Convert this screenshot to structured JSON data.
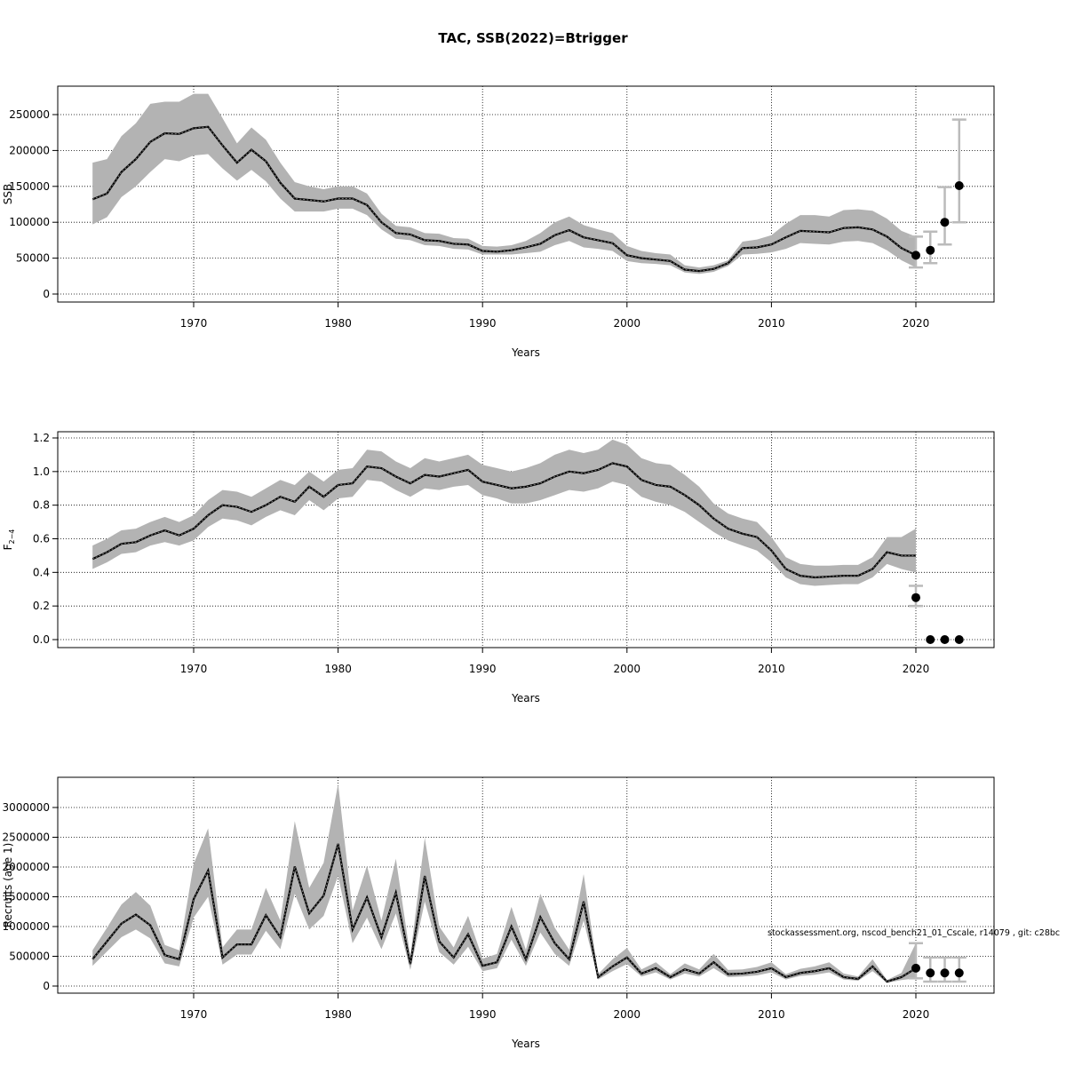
{
  "chart_data": {
    "title": "TAC, SSB(2022)=Btrigger",
    "annotation": "stockassessment.org, nscod_bench21_01_Cscale, r14079 , git: c28bc",
    "x_ticks": [
      1970,
      1980,
      1990,
      2000,
      2010,
      2020
    ],
    "years": [
      1963,
      1964,
      1965,
      1966,
      1967,
      1968,
      1969,
      1970,
      1971,
      1972,
      1973,
      1974,
      1975,
      1976,
      1977,
      1978,
      1979,
      1980,
      1981,
      1982,
      1983,
      1984,
      1985,
      1986,
      1987,
      1988,
      1989,
      1990,
      1991,
      1992,
      1993,
      1994,
      1995,
      1996,
      1997,
      1998,
      1999,
      2000,
      2001,
      2002,
      2003,
      2004,
      2005,
      2006,
      2007,
      2008,
      2009,
      2010,
      2011,
      2012,
      2013,
      2014,
      2015,
      2016,
      2017,
      2018,
      2019,
      2020
    ],
    "panels": [
      {
        "type": "line",
        "name": "ssb",
        "xlabel": "Years",
        "ylabel": "SSB",
        "ylim": [
          0,
          250000
        ],
        "y_ticks": [
          "0",
          "50000",
          "100000",
          "150000",
          "200000",
          "250000"
        ],
        "grid": true,
        "estimate": [
          132000,
          140000,
          170000,
          188000,
          212000,
          224000,
          223000,
          231000,
          233000,
          207000,
          183000,
          201000,
          185000,
          155000,
          133000,
          131000,
          129000,
          133000,
          133000,
          124000,
          100000,
          85000,
          83000,
          75000,
          74000,
          70000,
          69000,
          60000,
          59000,
          61000,
          65000,
          70000,
          82000,
          89000,
          79000,
          75000,
          71000,
          54000,
          50000,
          48000,
          46000,
          34000,
          32000,
          35000,
          43000,
          64000,
          65000,
          69000,
          79000,
          88000,
          87000,
          86000,
          92000,
          93000,
          90000,
          80000,
          64000,
          54000
        ],
        "lower": [
          97000,
          107000,
          135000,
          150000,
          170000,
          188000,
          185000,
          193000,
          195000,
          175000,
          158000,
          173000,
          157000,
          133000,
          115000,
          115000,
          115000,
          119000,
          119000,
          110000,
          90000,
          77000,
          75000,
          68000,
          67000,
          63000,
          62000,
          55000,
          55000,
          55000,
          57000,
          59000,
          68000,
          74000,
          65000,
          63000,
          60000,
          46000,
          43000,
          42000,
          40000,
          30000,
          28000,
          31000,
          39000,
          55000,
          56000,
          58000,
          63000,
          71000,
          70000,
          69000,
          73000,
          74000,
          71000,
          61000,
          47000,
          37000
        ],
        "upper": [
          183000,
          188000,
          220000,
          238000,
          265000,
          268000,
          268000,
          279000,
          279000,
          245000,
          210000,
          232000,
          215000,
          183000,
          156000,
          150000,
          146000,
          150000,
          150000,
          140000,
          112000,
          95000,
          93000,
          85000,
          84000,
          78000,
          77000,
          67000,
          66000,
          68000,
          74000,
          85000,
          100000,
          108000,
          96000,
          90000,
          85000,
          67000,
          60000,
          57000,
          55000,
          40000,
          37000,
          40000,
          47000,
          73000,
          76000,
          82000,
          98000,
          110000,
          110000,
          108000,
          117000,
          118000,
          116000,
          105000,
          88000,
          80000
        ],
        "forecast": [
          {
            "year": 2020,
            "value": 54000,
            "low": 37000,
            "high": 80000
          },
          {
            "year": 2021,
            "value": 61000,
            "low": 43000,
            "high": 87000
          },
          {
            "year": 2022,
            "value": 100000,
            "low": 69000,
            "high": 149000
          },
          {
            "year": 2023,
            "value": 151000,
            "low": 100000,
            "high": 243000
          }
        ]
      },
      {
        "type": "line",
        "name": "fbar",
        "xlabel": "Years",
        "ylabel": "F",
        "ylabel_sub": "2−4",
        "ylim": [
          0,
          1.2
        ],
        "y_ticks": [
          "0.0",
          "0.2",
          "0.4",
          "0.6",
          "0.8",
          "1.0",
          "1.2"
        ],
        "grid": true,
        "estimate": [
          0.48,
          0.52,
          0.57,
          0.58,
          0.62,
          0.65,
          0.62,
          0.66,
          0.74,
          0.8,
          0.79,
          0.76,
          0.8,
          0.85,
          0.82,
          0.91,
          0.85,
          0.92,
          0.93,
          1.03,
          1.02,
          0.97,
          0.93,
          0.98,
          0.97,
          0.99,
          1.01,
          0.94,
          0.92,
          0.9,
          0.91,
          0.93,
          0.97,
          1.0,
          0.99,
          1.01,
          1.05,
          1.03,
          0.95,
          0.92,
          0.91,
          0.86,
          0.8,
          0.72,
          0.66,
          0.63,
          0.61,
          0.53,
          0.42,
          0.38,
          0.37,
          0.375,
          0.38,
          0.38,
          0.42,
          0.52,
          0.5,
          0.5
        ],
        "lower": [
          0.42,
          0.46,
          0.51,
          0.52,
          0.56,
          0.58,
          0.56,
          0.59,
          0.67,
          0.72,
          0.71,
          0.68,
          0.73,
          0.77,
          0.74,
          0.83,
          0.77,
          0.84,
          0.85,
          0.95,
          0.94,
          0.89,
          0.85,
          0.9,
          0.89,
          0.91,
          0.92,
          0.86,
          0.84,
          0.81,
          0.81,
          0.83,
          0.86,
          0.89,
          0.88,
          0.9,
          0.94,
          0.92,
          0.85,
          0.82,
          0.8,
          0.76,
          0.7,
          0.64,
          0.59,
          0.56,
          0.53,
          0.46,
          0.37,
          0.33,
          0.32,
          0.325,
          0.33,
          0.33,
          0.37,
          0.45,
          0.42,
          0.4
        ],
        "upper": [
          0.56,
          0.6,
          0.65,
          0.66,
          0.7,
          0.73,
          0.7,
          0.74,
          0.83,
          0.89,
          0.88,
          0.85,
          0.9,
          0.95,
          0.92,
          1.0,
          0.94,
          1.01,
          1.02,
          1.13,
          1.12,
          1.06,
          1.02,
          1.08,
          1.06,
          1.08,
          1.1,
          1.04,
          1.02,
          1.0,
          1.02,
          1.05,
          1.1,
          1.13,
          1.11,
          1.13,
          1.19,
          1.16,
          1.08,
          1.05,
          1.04,
          0.98,
          0.91,
          0.81,
          0.75,
          0.72,
          0.7,
          0.61,
          0.49,
          0.45,
          0.44,
          0.44,
          0.445,
          0.445,
          0.49,
          0.61,
          0.61,
          0.66
        ],
        "forecast": [
          {
            "year": 2020,
            "value": 0.25,
            "low": 0.2,
            "high": 0.32
          },
          {
            "year": 2021,
            "value": 0.0,
            "low": 0.0,
            "high": 0.0
          },
          {
            "year": 2022,
            "value": 0.0,
            "low": 0.0,
            "high": 0.0
          },
          {
            "year": 2023,
            "value": 0.0,
            "low": 0.0,
            "high": 0.0
          }
        ]
      },
      {
        "type": "line",
        "name": "recruits",
        "xlabel": "Years",
        "ylabel": "Recruits (age 1)",
        "ylim": [
          0,
          3000000
        ],
        "y_ticks": [
          "0",
          "500000",
          "1000000",
          "1500000",
          "2000000",
          "2500000",
          "3000000"
        ],
        "grid": true,
        "estimate": [
          450000,
          750000,
          1050000,
          1200000,
          1020000,
          520000,
          450000,
          1460000,
          1940000,
          480000,
          700000,
          700000,
          1190000,
          820000,
          2010000,
          1220000,
          1520000,
          2390000,
          950000,
          1490000,
          820000,
          1570000,
          370000,
          1850000,
          750000,
          480000,
          870000,
          340000,
          400000,
          1000000,
          450000,
          1160000,
          720000,
          450000,
          1420000,
          150000,
          330000,
          480000,
          210000,
          300000,
          150000,
          280000,
          210000,
          400000,
          200000,
          210000,
          240000,
          300000,
          150000,
          220000,
          250000,
          300000,
          150000,
          120000,
          330000,
          75000,
          150000,
          300000
        ],
        "lower": [
          340000,
          580000,
          820000,
          950000,
          800000,
          380000,
          330000,
          1150000,
          1500000,
          360000,
          530000,
          530000,
          930000,
          620000,
          1550000,
          950000,
          1180000,
          1850000,
          720000,
          1150000,
          620000,
          1220000,
          270000,
          1420000,
          570000,
          360000,
          660000,
          250000,
          300000,
          780000,
          340000,
          900000,
          540000,
          340000,
          1100000,
          110000,
          250000,
          370000,
          160000,
          230000,
          110000,
          210000,
          160000,
          300000,
          150000,
          160000,
          180000,
          230000,
          110000,
          170000,
          190000,
          230000,
          110000,
          90000,
          250000,
          55000,
          100000,
          130000
        ],
        "upper": [
          600000,
          980000,
          1370000,
          1580000,
          1350000,
          690000,
          600000,
          2050000,
          2650000,
          650000,
          950000,
          950000,
          1650000,
          1100000,
          2770000,
          1650000,
          2070000,
          3400000,
          1270000,
          2020000,
          1100000,
          2140000,
          500000,
          2490000,
          1000000,
          650000,
          1180000,
          460000,
          540000,
          1330000,
          610000,
          1550000,
          980000,
          610000,
          1880000,
          200000,
          450000,
          640000,
          280000,
          400000,
          200000,
          380000,
          280000,
          540000,
          270000,
          280000,
          320000,
          400000,
          200000,
          290000,
          330000,
          400000,
          210000,
          160000,
          450000,
          100000,
          220000,
          720000
        ],
        "forecast": [
          {
            "year": 2020,
            "value": 300000,
            "low": 130000,
            "high": 720000
          },
          {
            "year": 2021,
            "value": 220000,
            "low": 75000,
            "high": 480000
          },
          {
            "year": 2022,
            "value": 220000,
            "low": 75000,
            "high": 480000
          },
          {
            "year": 2023,
            "value": 220000,
            "low": 75000,
            "high": 480000
          }
        ]
      }
    ]
  }
}
